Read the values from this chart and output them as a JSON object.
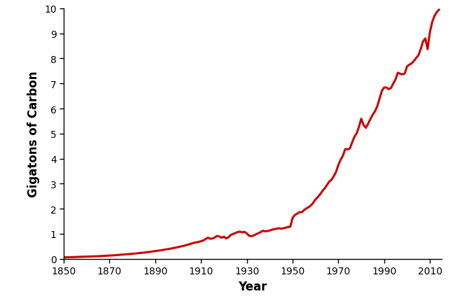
{
  "xlabel": "Year",
  "ylabel": "Gigatons of Carbon",
  "line_color": "#cc0000",
  "line_width": 2.2,
  "xlim": [
    1850,
    2015
  ],
  "ylim": [
    0,
    10
  ],
  "xticks": [
    1850,
    1870,
    1890,
    1910,
    1930,
    1950,
    1970,
    1990,
    2010
  ],
  "yticks": [
    0,
    1,
    2,
    3,
    4,
    5,
    6,
    7,
    8,
    9,
    10
  ],
  "years": [
    1850,
    1851,
    1852,
    1853,
    1854,
    1855,
    1856,
    1857,
    1858,
    1859,
    1860,
    1861,
    1862,
    1863,
    1864,
    1865,
    1866,
    1867,
    1868,
    1869,
    1870,
    1871,
    1872,
    1873,
    1874,
    1875,
    1876,
    1877,
    1878,
    1879,
    1880,
    1881,
    1882,
    1883,
    1884,
    1885,
    1886,
    1887,
    1888,
    1889,
    1890,
    1891,
    1892,
    1893,
    1894,
    1895,
    1896,
    1897,
    1898,
    1899,
    1900,
    1901,
    1902,
    1903,
    1904,
    1905,
    1906,
    1907,
    1908,
    1909,
    1910,
    1911,
    1912,
    1913,
    1914,
    1915,
    1916,
    1917,
    1918,
    1919,
    1920,
    1921,
    1922,
    1923,
    1924,
    1925,
    1926,
    1927,
    1928,
    1929,
    1930,
    1931,
    1932,
    1933,
    1934,
    1935,
    1936,
    1937,
    1938,
    1939,
    1940,
    1941,
    1942,
    1943,
    1944,
    1945,
    1946,
    1947,
    1948,
    1949,
    1950,
    1951,
    1952,
    1953,
    1954,
    1955,
    1956,
    1957,
    1958,
    1959,
    1960,
    1961,
    1962,
    1963,
    1964,
    1965,
    1966,
    1967,
    1968,
    1969,
    1970,
    1971,
    1972,
    1973,
    1974,
    1975,
    1976,
    1977,
    1978,
    1979,
    1980,
    1981,
    1982,
    1983,
    1984,
    1985,
    1986,
    1987,
    1988,
    1989,
    1990,
    1991,
    1992,
    1993,
    1994,
    1995,
    1996,
    1997,
    1998,
    1999,
    2000,
    2001,
    2002,
    2003,
    2004,
    2005,
    2006,
    2007,
    2008,
    2009,
    2010,
    2011,
    2012,
    2013,
    2014
  ],
  "emissions": [
    0.054,
    0.057,
    0.059,
    0.062,
    0.064,
    0.067,
    0.07,
    0.073,
    0.076,
    0.079,
    0.082,
    0.086,
    0.09,
    0.094,
    0.098,
    0.102,
    0.107,
    0.112,
    0.117,
    0.122,
    0.128,
    0.133,
    0.139,
    0.146,
    0.152,
    0.159,
    0.166,
    0.174,
    0.181,
    0.189,
    0.198,
    0.207,
    0.216,
    0.226,
    0.236,
    0.246,
    0.257,
    0.268,
    0.28,
    0.293,
    0.306,
    0.319,
    0.333,
    0.347,
    0.362,
    0.377,
    0.393,
    0.41,
    0.428,
    0.447,
    0.466,
    0.487,
    0.508,
    0.531,
    0.556,
    0.582,
    0.61,
    0.64,
    0.655,
    0.675,
    0.7,
    0.73,
    0.79,
    0.84,
    0.8,
    0.81,
    0.85,
    0.91,
    0.89,
    0.84,
    0.88,
    0.81,
    0.86,
    0.95,
    0.99,
    1.03,
    1.065,
    1.085,
    1.055,
    1.075,
    1.01,
    0.92,
    0.9,
    0.93,
    0.98,
    1.02,
    1.06,
    1.12,
    1.095,
    1.105,
    1.13,
    1.16,
    1.18,
    1.2,
    1.22,
    1.2,
    1.22,
    1.24,
    1.27,
    1.28,
    1.63,
    1.75,
    1.8,
    1.86,
    1.86,
    1.94,
    2.01,
    2.06,
    2.13,
    2.23,
    2.37,
    2.46,
    2.57,
    2.7,
    2.81,
    2.94,
    3.08,
    3.15,
    3.3,
    3.47,
    3.75,
    3.95,
    4.12,
    4.38,
    4.37,
    4.4,
    4.64,
    4.87,
    5.01,
    5.27,
    5.59,
    5.35,
    5.23,
    5.39,
    5.58,
    5.75,
    5.89,
    6.09,
    6.4,
    6.7,
    6.84,
    6.84,
    6.77,
    6.82,
    7.0,
    7.17,
    7.43,
    7.39,
    7.36,
    7.4,
    7.68,
    7.75,
    7.8,
    7.9,
    8.02,
    8.13,
    8.38,
    8.68,
    8.8,
    8.37,
    9.05,
    9.45,
    9.7,
    9.85,
    9.95
  ],
  "background_color": "#ffffff"
}
